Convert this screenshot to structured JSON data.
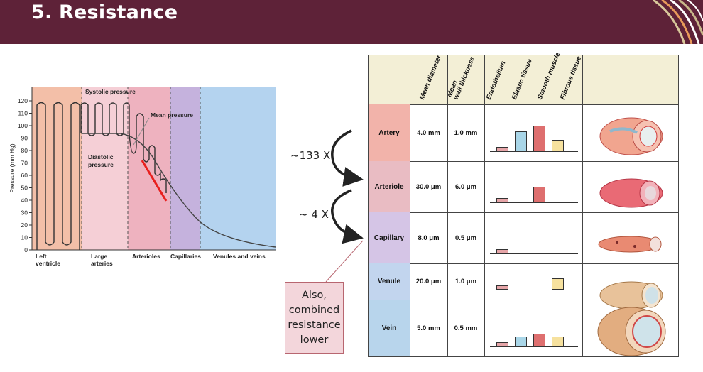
{
  "header": {
    "title": "5. Resistance"
  },
  "pressure_chart": {
    "ylabel": "Pressure (mm Hg)",
    "yticks": [
      "0",
      "10",
      "20",
      "30",
      "40",
      "50",
      "60",
      "70",
      "80",
      "90",
      "100",
      "110",
      "120"
    ],
    "region_labels": [
      "Left\nventricle",
      "Large\narteries",
      "Arterioles",
      "Capillaries",
      "Venules and veins"
    ],
    "annotations": {
      "systolic": "Systolic pressure",
      "mean": "Mean pressure",
      "diastolic": "Diastolic\npressure"
    },
    "colors": {
      "ventricle": "#f3bfa8",
      "arteries": "#f5cfd6",
      "arterioles": "#eeb2bf",
      "capillaries": "#c5b2dd",
      "veins": "#b4d3ef",
      "highlight": "#e8201e"
    }
  },
  "factors": {
    "first": "~133 X",
    "second": "~ 4 X"
  },
  "callout": {
    "text": "Also, combined resistance lower"
  },
  "table": {
    "columns": [
      "Mean diameter",
      "Mean\nwall thickness",
      "Endothelium",
      "Elastic tissue",
      "Smooth muscle",
      "Fibrous tissue"
    ],
    "tissue_colors": {
      "endothelium": "#e6a5a8",
      "elastic": "#a9d6e8",
      "smooth_muscle": "#de6f6f",
      "fibrous": "#f6e19e"
    },
    "rows": [
      {
        "name": "Artery",
        "diameter": "4.0 mm",
        "wall": "1.0 mm",
        "bars": [
          0.18,
          0.77,
          1.0,
          0.45
        ],
        "color": "#f2b3aa"
      },
      {
        "name": "Arteriole",
        "diameter": "30.0 μm",
        "wall": "6.0 μm",
        "bars": [
          0.18,
          0,
          0.6,
          0
        ],
        "color": "#e9bcc3"
      },
      {
        "name": "Capillary",
        "diameter": "8.0 μm",
        "wall": "0.5 μm",
        "bars": [
          0.18,
          0,
          0,
          0
        ],
        "color": "#d5c5e6"
      },
      {
        "name": "Venule",
        "diameter": "20.0 μm",
        "wall": "1.0 μm",
        "bars": [
          0.18,
          0,
          0,
          0.45
        ],
        "color": "#c2d5ee"
      },
      {
        "name": "Vein",
        "diameter": "5.0 mm",
        "wall": "0.5 mm",
        "bars": [
          0.18,
          0.4,
          0.5,
          0.4
        ],
        "color": "#b8d5ec"
      }
    ]
  }
}
